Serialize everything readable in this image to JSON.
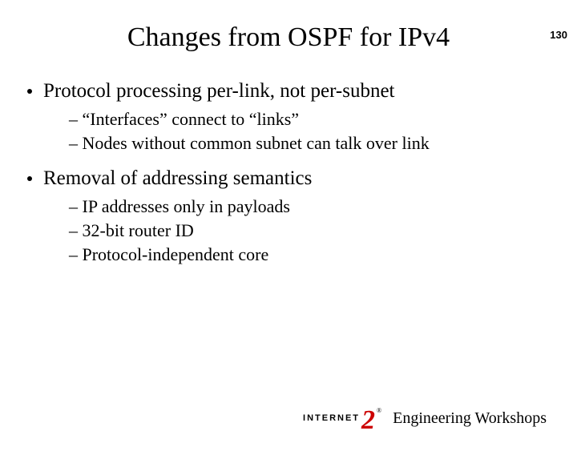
{
  "page_number": "130",
  "title": "Changes from OSPF for IPv4",
  "bullets": [
    {
      "text": "Protocol processing per-link, not per-subnet",
      "sub": [
        "– “Interfaces” connect to “links”",
        "– Nodes without common subnet can talk over link"
      ]
    },
    {
      "text": "Removal of addressing semantics",
      "sub": [
        "– IP addresses only in payloads",
        "– 32-bit router ID",
        "– Protocol-independent core"
      ]
    }
  ],
  "logo": {
    "prefix": "INTERNET",
    "glyph": "2",
    "reg": "®"
  },
  "footer_text": "Engineering Workshops",
  "colors": {
    "logo_accent": "#cc0000",
    "text": "#000000",
    "background": "#ffffff"
  }
}
